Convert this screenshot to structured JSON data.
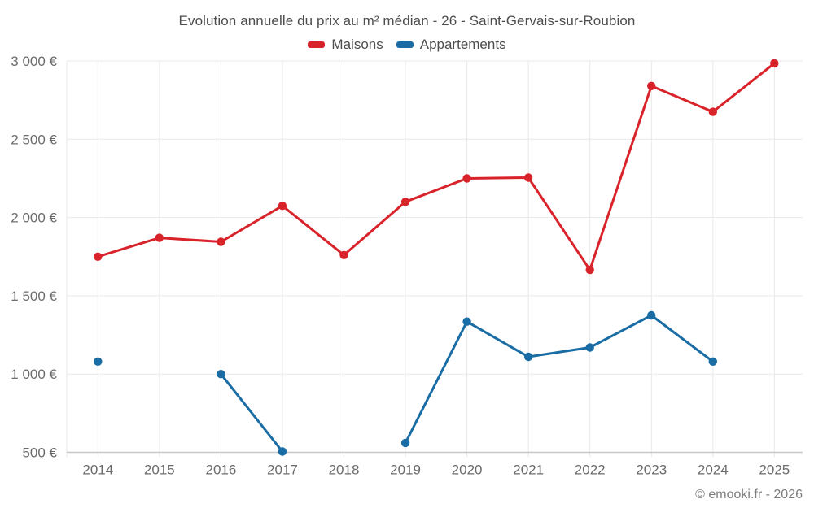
{
  "title": "Evolution annuelle du prix au m² médian - 26 - Saint-Gervais-sur-Roubion",
  "legend": {
    "items": [
      {
        "label": "Maisons",
        "color": "#d9232b"
      },
      {
        "label": "Appartements",
        "color": "#1a6da4"
      }
    ]
  },
  "footer": {
    "copyright": "© emooki.fr - 2026"
  },
  "colors": {
    "maisons": "#d9232b",
    "appartements": "#1a6da4",
    "grid": "#e9e9e9",
    "axis_line": "#c8c8c8",
    "axis_text": "#6b6b6b",
    "title_text": "#4d4d4d",
    "footer_text": "#7d7d7d"
  },
  "chart_data": {
    "type": "line",
    "title": "Evolution annuelle du prix au m² médian - 26 - Saint-Gervais-sur-Roubion",
    "xlabel": "",
    "ylabel": "",
    "x": [
      2014,
      2015,
      2016,
      2017,
      2018,
      2019,
      2020,
      2021,
      2022,
      2023,
      2024,
      2025
    ],
    "series": [
      {
        "name": "Maisons",
        "color": "#d9232b",
        "values": [
          1750,
          1870,
          1845,
          2075,
          1760,
          2100,
          2250,
          2255,
          1665,
          2840,
          2675,
          2985
        ]
      },
      {
        "name": "Appartements",
        "color": "#1a6da4",
        "values": [
          1080,
          null,
          1000,
          505,
          null,
          560,
          1335,
          1110,
          1170,
          1375,
          1080,
          null
        ]
      }
    ],
    "ylim": [
      500,
      3000
    ],
    "ytick_step": 500,
    "ytick_labels": [
      "500 €",
      "1 000 €",
      "1 500 €",
      "2 000 €",
      "2 500 €",
      "3 000 €"
    ],
    "grid": true,
    "legend_position": "top"
  }
}
